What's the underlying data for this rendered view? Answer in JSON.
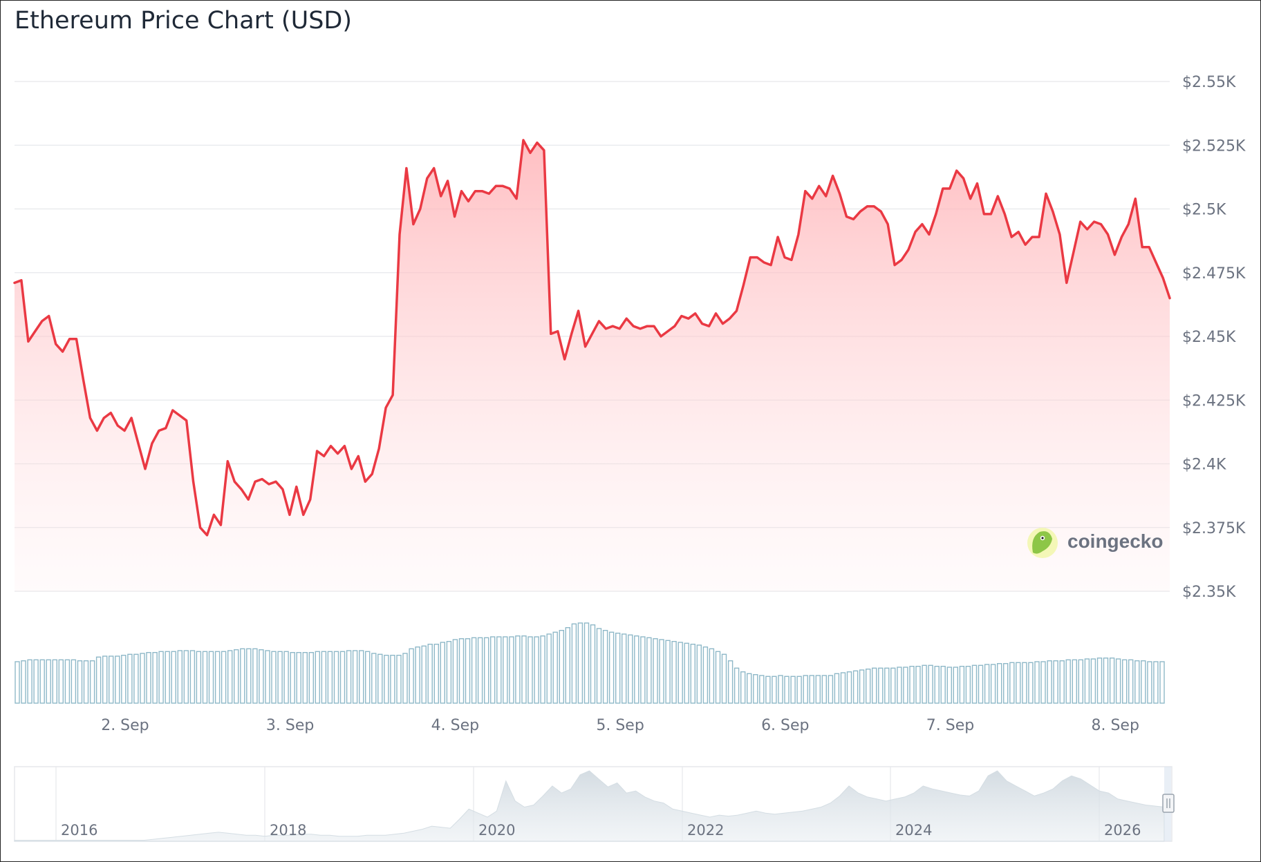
{
  "chart_data": {
    "type": "line",
    "title": "Ethereum Price Chart (USD)",
    "xlabel": "",
    "ylabel": "",
    "x_ticks": [
      "2. Sep",
      "3. Sep",
      "4. Sep",
      "5. Sep",
      "6. Sep",
      "7. Sep",
      "8. Sep"
    ],
    "x_range_days": [
      1.33,
      8.33
    ],
    "y_ticks": [
      "$2.35K",
      "$2.375K",
      "$2.4K",
      "$2.425K",
      "$2.45K",
      "$2.475K",
      "$2.5K",
      "$2.525K",
      "$2.55K"
    ],
    "ylim": [
      2350,
      2550
    ],
    "grid": true,
    "line_color": "#ea3943",
    "fill_color": "#ffc9cc",
    "volume_color": "#8eb8c8",
    "series": [
      {
        "values": [
          2471,
          2472,
          2448,
          2452,
          2456,
          2458,
          2447,
          2444,
          2449,
          2449,
          2433,
          2418,
          2413,
          2418,
          2420,
          2415,
          2413,
          2418,
          2408,
          2398,
          2408,
          2413,
          2414,
          2421,
          2419,
          2417,
          2393,
          2375,
          2372,
          2380,
          2376,
          2401,
          2393,
          2390,
          2386,
          2393,
          2394,
          2392,
          2393,
          2390,
          2380,
          2391,
          2380,
          2386,
          2405,
          2403,
          2407,
          2404,
          2407,
          2398,
          2403,
          2393,
          2396,
          2406,
          2422,
          2427,
          2490,
          2516,
          2494,
          2500,
          2512,
          2516,
          2505,
          2511,
          2497,
          2507,
          2503,
          2507,
          2507,
          2506,
          2509,
          2509,
          2508,
          2504,
          2527,
          2522,
          2526,
          2523,
          2451,
          2452,
          2441,
          2451,
          2460,
          2446,
          2451,
          2456,
          2453,
          2454,
          2453,
          2457,
          2454,
          2453,
          2454,
          2454,
          2450,
          2452,
          2454,
          2458,
          2457,
          2459,
          2455,
          2454,
          2459,
          2455,
          2457,
          2460,
          2470,
          2481,
          2481,
          2479,
          2478,
          2489,
          2481,
          2480,
          2490,
          2507,
          2504,
          2509,
          2505,
          2513,
          2506,
          2497,
          2496,
          2499,
          2501,
          2501,
          2499,
          2494,
          2478,
          2480,
          2484,
          2491,
          2494,
          2490,
          2498,
          2508,
          2508,
          2515,
          2512,
          2504,
          2510,
          2498,
          2498,
          2505,
          2498,
          2489,
          2491,
          2486,
          2489,
          2489,
          2506,
          2499,
          2490,
          2471,
          2483,
          2495,
          2492,
          2495,
          2494,
          2490,
          2482,
          2489,
          2494,
          2504,
          2485,
          2485,
          2479,
          2473,
          2465
        ]
      }
    ],
    "volume": {
      "values": [
        45,
        46,
        47,
        47,
        47,
        47,
        47,
        47,
        47,
        47,
        46,
        46,
        46,
        50,
        51,
        51,
        51,
        52,
        53,
        53,
        54,
        55,
        55,
        56,
        56,
        56,
        57,
        57,
        57,
        56,
        56,
        56,
        56,
        56,
        57,
        58,
        59,
        59,
        59,
        58,
        57,
        56,
        56,
        56,
        55,
        55,
        55,
        55,
        56,
        56,
        56,
        56,
        56,
        57,
        57,
        57,
        56,
        54,
        53,
        52,
        52,
        52,
        54,
        59,
        61,
        62,
        64,
        64,
        66,
        67,
        69,
        70,
        70,
        71,
        71,
        71,
        72,
        72,
        72,
        72,
        73,
        73,
        72,
        72,
        73,
        75,
        77,
        79,
        82,
        86,
        87,
        87,
        85,
        81,
        79,
        77,
        76,
        75,
        74,
        73,
        72,
        71,
        70,
        69,
        68,
        67,
        66,
        65,
        64,
        63,
        61,
        59,
        56,
        53,
        46,
        38,
        34,
        32,
        31,
        30,
        29,
        29,
        30,
        29,
        29,
        29,
        30,
        30,
        30,
        30,
        30,
        32,
        33,
        34,
        35,
        36,
        37,
        38,
        38,
        38,
        38,
        39,
        39,
        40,
        40,
        41,
        41,
        40,
        40,
        39,
        39,
        40,
        40,
        41,
        41,
        42,
        42,
        43,
        43,
        44,
        44,
        44,
        44,
        45,
        45,
        46,
        46,
        46,
        47,
        47,
        47,
        48,
        48,
        49,
        49,
        49,
        48,
        47,
        47,
        46,
        46,
        45,
        45,
        45
      ]
    },
    "navigator": {
      "x_ticks": [
        "2016",
        "2018",
        "2020",
        "2022",
        "2024",
        "2026"
      ],
      "values": [
        1,
        1,
        1,
        1,
        1,
        1,
        1,
        1,
        1,
        1,
        1,
        1,
        1,
        1,
        1,
        2,
        3,
        4,
        5,
        6,
        7,
        8,
        9,
        8,
        7,
        6,
        6,
        5,
        6,
        6,
        6,
        7,
        7,
        6,
        6,
        5,
        5,
        5,
        6,
        6,
        6,
        7,
        8,
        10,
        12,
        15,
        14,
        13,
        22,
        32,
        28,
        24,
        30,
        60,
        40,
        34,
        36,
        45,
        55,
        48,
        52,
        66,
        70,
        62,
        54,
        58,
        48,
        50,
        44,
        40,
        38,
        32,
        30,
        28,
        26,
        24,
        26,
        25,
        26,
        28,
        30,
        28,
        27,
        28,
        29,
        30,
        32,
        34,
        38,
        45,
        55,
        48,
        44,
        42,
        40,
        42,
        44,
        48,
        55,
        52,
        50,
        48,
        46,
        45,
        50,
        65,
        70,
        60,
        55,
        50,
        45,
        48,
        52,
        60,
        65,
        62,
        56,
        50,
        48,
        42,
        40,
        38,
        36,
        35,
        34
      ]
    },
    "watermark": "coingecko"
  }
}
